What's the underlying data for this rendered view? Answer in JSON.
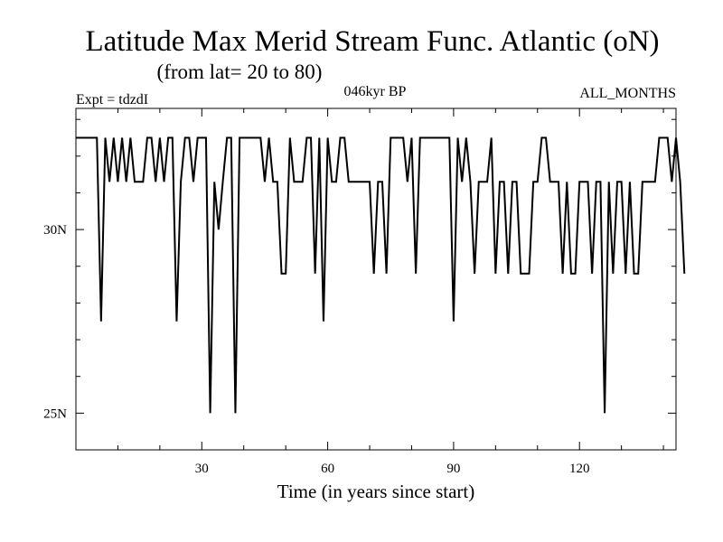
{
  "chart_data": {
    "type": "line",
    "title": "Latitude Max Merid Stream Func. Atlantic (oN)",
    "subtitle": "(from lat= 20 to 80)",
    "left_label": "Expt = tdzdI",
    "center_label": "046kyr BP",
    "right_label": "ALL_MONTHS",
    "xlabel": "Time (in years since start)",
    "ylabel": "",
    "xlim": [
      0,
      143
    ],
    "ylim": [
      24,
      33.3
    ],
    "x_ticks": [
      30,
      60,
      90,
      120
    ],
    "x_tick_labels": [
      "30",
      "60",
      "90",
      "120"
    ],
    "x_minor_step": 10,
    "y_ticks": [
      25,
      30
    ],
    "y_tick_labels": [
      "25N",
      "30N"
    ],
    "y_minor_step": 1,
    "series": [
      {
        "name": "Latitude Max Merid Stream Func.",
        "x_start": 0,
        "values": [
          32.5,
          32.5,
          32.5,
          32.5,
          32.5,
          32.5,
          27.5,
          32.5,
          31.3,
          32.5,
          31.3,
          32.5,
          31.3,
          32.5,
          31.3,
          31.3,
          31.3,
          32.5,
          32.5,
          31.3,
          32.5,
          31.3,
          32.5,
          32.5,
          27.5,
          31.3,
          32.5,
          32.5,
          31.3,
          32.5,
          32.5,
          32.5,
          25,
          31.3,
          30,
          31.3,
          32.5,
          32.5,
          25,
          32.5,
          32.5,
          32.5,
          32.5,
          32.5,
          32.5,
          31.3,
          32.5,
          31.3,
          31.3,
          28.8,
          28.8,
          32.5,
          31.3,
          31.3,
          31.3,
          32.5,
          32.5,
          28.8,
          32.5,
          27.5,
          32.5,
          31.3,
          31.3,
          32.5,
          32.5,
          31.3,
          31.3,
          31.3,
          31.3,
          31.3,
          31.3,
          28.8,
          31.3,
          31.3,
          28.8,
          32.5,
          32.5,
          32.5,
          32.5,
          31.3,
          32.5,
          28.8,
          32.5,
          32.5,
          32.5,
          32.5,
          32.5,
          32.5,
          32.5,
          32.5,
          27.5,
          32.5,
          31.3,
          32.5,
          31.3,
          28.8,
          31.3,
          31.3,
          31.3,
          32.5,
          28.8,
          31.3,
          31.3,
          28.8,
          31.3,
          31.3,
          28.8,
          28.8,
          28.8,
          31.3,
          31.3,
          32.5,
          32.5,
          31.3,
          31.3,
          31.3,
          28.8,
          31.3,
          28.8,
          28.8,
          31.3,
          31.3,
          31.3,
          28.8,
          31.3,
          31.3,
          25,
          31.3,
          28.8,
          31.3,
          31.3,
          28.8,
          31.3,
          28.8,
          28.8,
          31.3,
          31.3,
          31.3,
          31.3,
          32.5,
          32.5,
          32.5,
          31.3,
          32.5,
          31.3,
          28.8
        ]
      }
    ]
  }
}
